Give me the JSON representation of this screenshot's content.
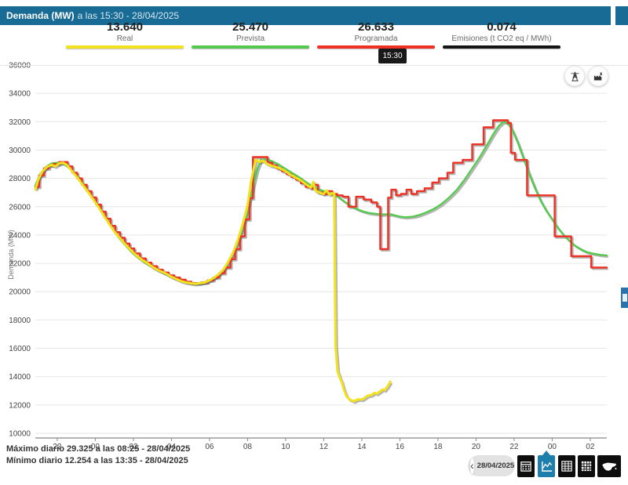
{
  "header": {
    "title_bold": "Demanda (MW)",
    "title_rest": "a las 15:30 - 28/04/2025"
  },
  "legend": [
    {
      "value": "13.640",
      "label": "Real",
      "color": "#f2e11e"
    },
    {
      "value": "25.470",
      "label": "Prevista",
      "color": "#55c94f"
    },
    {
      "value": "26.633",
      "label": "Programada",
      "color": "#ee3124"
    },
    {
      "value": "0.074",
      "label": "Emisiones (t CO2 eq / MWh)",
      "color": "#141414"
    }
  ],
  "tooltip": {
    "time": "15:30"
  },
  "footer": {
    "max_text": "Máximo diario 29.325 a las 08:25 - 28/04/2025",
    "min_text": "Mínimo diario 12.254 a las 13:35 - 28/04/2025"
  },
  "toolbar": {
    "prev_chevron": "‹",
    "date": "28/04/2025",
    "active_view": "line-chart"
  },
  "chart_data": {
    "type": "line",
    "ylabel": "Demanda (MW)",
    "ylim": [
      10000,
      36000
    ],
    "y_ticks": [
      10000,
      12000,
      14000,
      16000,
      18000,
      20000,
      22000,
      24000,
      26000,
      28000,
      30000,
      32000,
      34000,
      36000
    ],
    "x_range_hours": [
      20.85,
      50.87
    ],
    "x_ticks": [
      {
        "t": 22,
        "label": "22"
      },
      {
        "t": 24,
        "label": "00"
      },
      {
        "t": 26,
        "label": "02"
      },
      {
        "t": 28,
        "label": "04"
      },
      {
        "t": 30,
        "label": "06"
      },
      {
        "t": 32,
        "label": "08"
      },
      {
        "t": 34,
        "label": "10"
      },
      {
        "t": 36,
        "label": "12"
      },
      {
        "t": 38,
        "label": "14"
      },
      {
        "t": 40,
        "label": "16"
      },
      {
        "t": 42,
        "label": "18"
      },
      {
        "t": 44,
        "label": "20"
      },
      {
        "t": 46,
        "label": "22"
      },
      {
        "t": 48,
        "label": "00"
      },
      {
        "t": 50,
        "label": "02"
      }
    ],
    "grid": true,
    "legend_position": "top",
    "series": [
      {
        "name": "Prevista",
        "color": "#55c94f",
        "mode": "linear",
        "width": 2.4,
        "points": [
          [
            20.85,
            27500
          ],
          [
            21.1,
            28300
          ],
          [
            21.4,
            28800
          ],
          [
            21.7,
            29050
          ],
          [
            22.0,
            29100
          ],
          [
            22.3,
            29050
          ],
          [
            22.6,
            28800
          ],
          [
            22.9,
            28400
          ],
          [
            23.2,
            27950
          ],
          [
            23.5,
            27350
          ],
          [
            23.8,
            26750
          ],
          [
            24.1,
            26150
          ],
          [
            24.4,
            25500
          ],
          [
            24.7,
            24850
          ],
          [
            25.0,
            24250
          ],
          [
            25.3,
            23700
          ],
          [
            25.6,
            23250
          ],
          [
            25.9,
            22800
          ],
          [
            26.2,
            22450
          ],
          [
            26.5,
            22150
          ],
          [
            26.8,
            21900
          ],
          [
            27.1,
            21650
          ],
          [
            27.4,
            21450
          ],
          [
            27.7,
            21250
          ],
          [
            28.0,
            21050
          ],
          [
            28.3,
            20900
          ],
          [
            28.6,
            20750
          ],
          [
            28.9,
            20650
          ],
          [
            29.2,
            20600
          ],
          [
            29.5,
            20600
          ],
          [
            29.8,
            20700
          ],
          [
            30.1,
            20850
          ],
          [
            30.4,
            21100
          ],
          [
            30.7,
            21500
          ],
          [
            31.0,
            22100
          ],
          [
            31.3,
            22900
          ],
          [
            31.6,
            23900
          ],
          [
            31.9,
            25200
          ],
          [
            32.2,
            26900
          ],
          [
            32.5,
            28600
          ],
          [
            32.7,
            29300
          ],
          [
            33.0,
            29350
          ],
          [
            33.3,
            29200
          ],
          [
            33.6,
            29000
          ],
          [
            33.9,
            28750
          ],
          [
            34.2,
            28500
          ],
          [
            34.5,
            28250
          ],
          [
            34.8,
            28000
          ],
          [
            35.1,
            27700
          ],
          [
            35.4,
            27450
          ],
          [
            35.7,
            27250
          ],
          [
            36.0,
            27100
          ],
          [
            36.3,
            26950
          ],
          [
            36.6,
            26850
          ],
          [
            36.9,
            26550
          ],
          [
            37.2,
            26250
          ],
          [
            37.5,
            26000
          ],
          [
            37.8,
            25800
          ],
          [
            38.1,
            25650
          ],
          [
            38.4,
            25550
          ],
          [
            38.7,
            25500
          ],
          [
            39.0,
            25450
          ],
          [
            39.5,
            25470
          ],
          [
            40.0,
            25300
          ],
          [
            40.3,
            25250
          ],
          [
            40.7,
            25300
          ],
          [
            41.0,
            25400
          ],
          [
            41.4,
            25600
          ],
          [
            41.8,
            25850
          ],
          [
            42.2,
            26200
          ],
          [
            42.6,
            26650
          ],
          [
            43.0,
            27200
          ],
          [
            43.4,
            27900
          ],
          [
            43.8,
            28700
          ],
          [
            44.2,
            29500
          ],
          [
            44.6,
            30400
          ],
          [
            44.9,
            31100
          ],
          [
            45.2,
            31700
          ],
          [
            45.45,
            32000
          ],
          [
            45.7,
            31850
          ],
          [
            45.95,
            31300
          ],
          [
            46.2,
            30500
          ],
          [
            46.5,
            29400
          ],
          [
            46.8,
            28300
          ],
          [
            47.1,
            27300
          ],
          [
            47.4,
            26400
          ],
          [
            47.7,
            25700
          ],
          [
            48.0,
            25100
          ],
          [
            48.3,
            24500
          ],
          [
            48.6,
            24000
          ],
          [
            48.9,
            23600
          ],
          [
            49.2,
            23250
          ],
          [
            49.5,
            23000
          ],
          [
            49.8,
            22800
          ],
          [
            50.1,
            22700
          ],
          [
            50.5,
            22600
          ],
          [
            50.87,
            22550
          ]
        ]
      },
      {
        "name": "Programada",
        "color": "#ee3124",
        "mode": "step",
        "width": 2.4,
        "points": [
          [
            20.85,
            27400
          ],
          [
            21.05,
            28200
          ],
          [
            21.3,
            28700
          ],
          [
            21.55,
            28900
          ],
          [
            21.8,
            29000
          ],
          [
            22.1,
            29150
          ],
          [
            22.55,
            28850
          ],
          [
            22.8,
            28400
          ],
          [
            23.05,
            28000
          ],
          [
            23.3,
            27550
          ],
          [
            23.55,
            27100
          ],
          [
            23.8,
            26650
          ],
          [
            24.05,
            26150
          ],
          [
            24.3,
            25650
          ],
          [
            24.55,
            25150
          ],
          [
            24.8,
            24650
          ],
          [
            25.05,
            24200
          ],
          [
            25.3,
            23800
          ],
          [
            25.55,
            23400
          ],
          [
            25.8,
            23050
          ],
          [
            26.05,
            22700
          ],
          [
            26.35,
            22350
          ],
          [
            26.65,
            22050
          ],
          [
            26.95,
            21800
          ],
          [
            27.25,
            21550
          ],
          [
            27.55,
            21350
          ],
          [
            27.85,
            21150
          ],
          [
            28.15,
            21000
          ],
          [
            28.45,
            20850
          ],
          [
            28.75,
            20700
          ],
          [
            29.05,
            20600
          ],
          [
            29.55,
            20650
          ],
          [
            29.9,
            20800
          ],
          [
            30.2,
            21000
          ],
          [
            30.5,
            21300
          ],
          [
            30.8,
            21700
          ],
          [
            31.1,
            22300
          ],
          [
            31.35,
            23000
          ],
          [
            31.6,
            23900
          ],
          [
            31.85,
            25100
          ],
          [
            32.1,
            26600
          ],
          [
            32.28,
            29500
          ],
          [
            33.05,
            29100
          ],
          [
            33.3,
            28900
          ],
          [
            33.55,
            28700
          ],
          [
            33.8,
            28500
          ],
          [
            34.05,
            28300
          ],
          [
            34.3,
            28100
          ],
          [
            34.55,
            27900
          ],
          [
            34.8,
            27650
          ],
          [
            35.05,
            27400
          ],
          [
            35.3,
            27300
          ],
          [
            35.5,
            27550
          ],
          [
            35.7,
            27000
          ],
          [
            35.95,
            26900
          ],
          [
            36.2,
            27100
          ],
          [
            36.45,
            26900
          ],
          [
            36.7,
            26800
          ],
          [
            37.0,
            26700
          ],
          [
            37.3,
            26000
          ],
          [
            37.7,
            26700
          ],
          [
            38.1,
            26500
          ],
          [
            38.5,
            26300
          ],
          [
            38.8,
            26000
          ],
          [
            38.97,
            23000
          ],
          [
            39.38,
            26633
          ],
          [
            39.55,
            27200
          ],
          [
            39.8,
            26800
          ],
          [
            40.05,
            26900
          ],
          [
            40.35,
            27200
          ],
          [
            40.6,
            26900
          ],
          [
            40.9,
            27100
          ],
          [
            41.3,
            27300
          ],
          [
            41.7,
            27700
          ],
          [
            42.05,
            28000
          ],
          [
            42.5,
            28400
          ],
          [
            42.8,
            29100
          ],
          [
            43.3,
            29300
          ],
          [
            43.8,
            30400
          ],
          [
            44.4,
            31600
          ],
          [
            44.9,
            32100
          ],
          [
            45.67,
            31900
          ],
          [
            45.83,
            29800
          ],
          [
            46.05,
            29300
          ],
          [
            46.68,
            26800
          ],
          [
            48.13,
            23900
          ],
          [
            49.0,
            22500
          ],
          [
            50.05,
            21700
          ],
          [
            50.87,
            21700
          ]
        ]
      },
      {
        "name": "Real",
        "color": "#f2e11e",
        "mode": "linear",
        "width": 3,
        "points": [
          [
            20.85,
            27200
          ],
          [
            21.0,
            27900
          ],
          [
            21.2,
            28450
          ],
          [
            21.45,
            28800
          ],
          [
            21.7,
            28950
          ],
          [
            21.9,
            28850
          ],
          [
            22.1,
            29050
          ],
          [
            22.3,
            29100
          ],
          [
            22.5,
            28950
          ],
          [
            22.75,
            28550
          ],
          [
            23.0,
            28150
          ],
          [
            23.25,
            27700
          ],
          [
            23.5,
            27250
          ],
          [
            23.75,
            26800
          ],
          [
            24.0,
            26300
          ],
          [
            24.25,
            25800
          ],
          [
            24.5,
            25250
          ],
          [
            24.75,
            24750
          ],
          [
            25.0,
            24250
          ],
          [
            25.25,
            23850
          ],
          [
            25.5,
            23450
          ],
          [
            25.75,
            23100
          ],
          [
            26.0,
            22750
          ],
          [
            26.25,
            22450
          ],
          [
            26.5,
            22200
          ],
          [
            26.75,
            22000
          ],
          [
            27.0,
            21750
          ],
          [
            27.25,
            21550
          ],
          [
            27.5,
            21400
          ],
          [
            27.75,
            21250
          ],
          [
            28.0,
            21050
          ],
          [
            28.25,
            20900
          ],
          [
            28.5,
            20750
          ],
          [
            28.75,
            20650
          ],
          [
            29.0,
            20600
          ],
          [
            29.25,
            20550
          ],
          [
            29.5,
            20600
          ],
          [
            29.75,
            20650
          ],
          [
            30.0,
            20800
          ],
          [
            30.25,
            21000
          ],
          [
            30.5,
            21250
          ],
          [
            30.75,
            21600
          ],
          [
            31.0,
            22150
          ],
          [
            31.25,
            22800
          ],
          [
            31.5,
            23700
          ],
          [
            31.75,
            24800
          ],
          [
            32.0,
            26100
          ],
          [
            32.2,
            27900
          ],
          [
            32.42,
            29325
          ],
          [
            32.6,
            29150
          ],
          [
            32.8,
            29250
          ],
          [
            33.0,
            29050
          ],
          [
            33.2,
            28900
          ],
          [
            33.4,
            28850
          ],
          [
            33.6,
            28750
          ],
          [
            33.8,
            28650
          ],
          [
            34.0,
            28500
          ],
          [
            34.2,
            28300
          ],
          [
            34.4,
            28150
          ],
          [
            34.6,
            28000
          ],
          [
            34.8,
            27850
          ],
          [
            35.0,
            27650
          ],
          [
            35.2,
            27450
          ],
          [
            35.33,
            27350
          ],
          [
            35.45,
            27750
          ],
          [
            35.55,
            27150
          ],
          [
            35.7,
            27050
          ],
          [
            35.85,
            26950
          ],
          [
            36.0,
            26900
          ],
          [
            36.15,
            27150
          ],
          [
            36.3,
            26850
          ],
          [
            36.45,
            26950
          ],
          [
            36.55,
            26950
          ],
          [
            36.62,
            16200
          ],
          [
            36.72,
            14400
          ],
          [
            36.85,
            13900
          ],
          [
            36.95,
            13600
          ],
          [
            37.05,
            13100
          ],
          [
            37.2,
            12600
          ],
          [
            37.35,
            12400
          ],
          [
            37.5,
            12300
          ],
          [
            37.58,
            12254
          ],
          [
            37.7,
            12350
          ],
          [
            37.85,
            12400
          ],
          [
            38.0,
            12380
          ],
          [
            38.15,
            12500
          ],
          [
            38.3,
            12650
          ],
          [
            38.5,
            12700
          ],
          [
            38.65,
            12850
          ],
          [
            38.8,
            12800
          ],
          [
            39.0,
            13000
          ],
          [
            39.1,
            13100
          ],
          [
            39.2,
            13050
          ],
          [
            39.35,
            13300
          ],
          [
            39.5,
            13640
          ]
        ]
      }
    ]
  }
}
